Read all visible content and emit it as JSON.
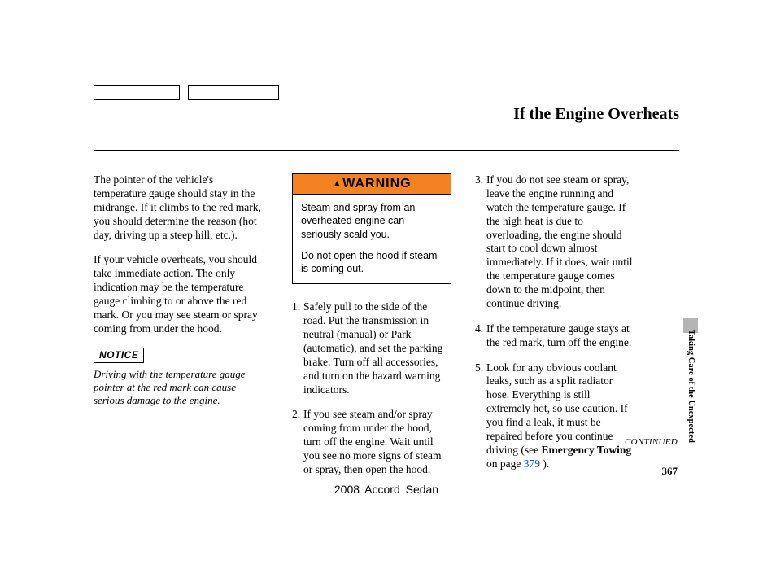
{
  "header": {
    "title": "If the Engine Overheats"
  },
  "col1": {
    "p1": "The pointer of the vehicle's temperature gauge should stay in the midrange. If it climbs to the red mark, you should determine the reason (hot day, driving up a steep hill, etc.).",
    "p2": "If your vehicle overheats, you should take immediate action. The only indication may be the temperature gauge climbing to or above the red mark. Or you may see steam or spray coming from under the hood.",
    "notice_label": "NOTICE",
    "notice_text": "Driving with the temperature gauge pointer at the red mark can cause serious damage to the engine."
  },
  "warning": {
    "label": "WARNING",
    "body1": "Steam and spray from an overheated engine can seriously scald you.",
    "body2": "Do not open the hood if steam is coming out."
  },
  "steps_a": {
    "s1": "Safely pull to the side of the road. Put the transmission in neutral (manual) or Park (automatic), and set the parking brake. Turn off all accessories, and turn on the hazard warning indicators.",
    "s2": "If you see steam and/or spray coming from under the hood, turn off the engine. Wait until you see no more signs of steam or spray, then open the hood."
  },
  "steps_b": {
    "s3": "If you do not see steam or spray, leave the engine running and watch the temperature gauge. If the high heat is due to overloading, the engine should start to cool down almost immediately. If it does, wait until the temperature gauge comes down to the midpoint, then continue driving.",
    "s4": "If the temperature gauge stays at the red mark, turn off the engine.",
    "s5_a": "Look for any obvious coolant leaks, such as a split radiator hose. Everything is still extremely hot, so use caution. If you find a leak, it must be repaired before you continue driving (see ",
    "s5_em": "Emergency Towing",
    "s5_b": " on page ",
    "s5_page": "379",
    "s5_c": " )."
  },
  "footer": {
    "continued": "CONTINUED",
    "page": "367",
    "model": "2008  Accord  Sedan"
  },
  "side": {
    "label": "Taking Care of the Unexpected"
  },
  "colors": {
    "warning_bg": "#f58220",
    "link": "#1a4fc7",
    "tab": "#b5b5b5"
  }
}
